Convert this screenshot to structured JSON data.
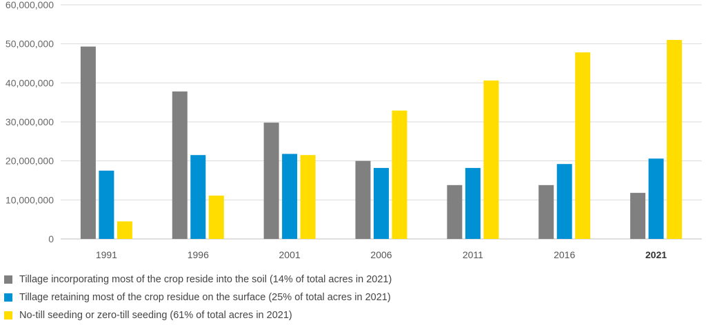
{
  "chart_data": {
    "type": "bar",
    "categories": [
      "1991",
      "1996",
      "2001",
      "2006",
      "2011",
      "2016",
      "2021"
    ],
    "bold_category": "2021",
    "yticks": [
      "0",
      "10,000,000",
      "20,000,000",
      "30,000,000",
      "40,000,000",
      "50,000,000",
      "60,000,000"
    ],
    "ylim": [
      0,
      60000000
    ],
    "grid": true,
    "legend_position": "bottom-left",
    "series": [
      {
        "name": "Tillage incorporating most of the crop reside into the soil (14% of total acres in 2021)",
        "color": "#808080",
        "values": [
          49300000,
          37800000,
          29800000,
          20000000,
          13800000,
          13800000,
          11800000
        ]
      },
      {
        "name": "Tillage retaining most of the crop residue on the surface (25% of total acres in 2021)",
        "color": "#0091d4",
        "values": [
          17500000,
          21500000,
          21800000,
          18200000,
          18200000,
          19200000,
          20600000
        ]
      },
      {
        "name": "No-till seeding or zero-till seeding (61% of total acres in 2021)",
        "color": "#ffdd00",
        "values": [
          4500000,
          11100000,
          21500000,
          32900000,
          40600000,
          47800000,
          51000000
        ]
      }
    ]
  }
}
